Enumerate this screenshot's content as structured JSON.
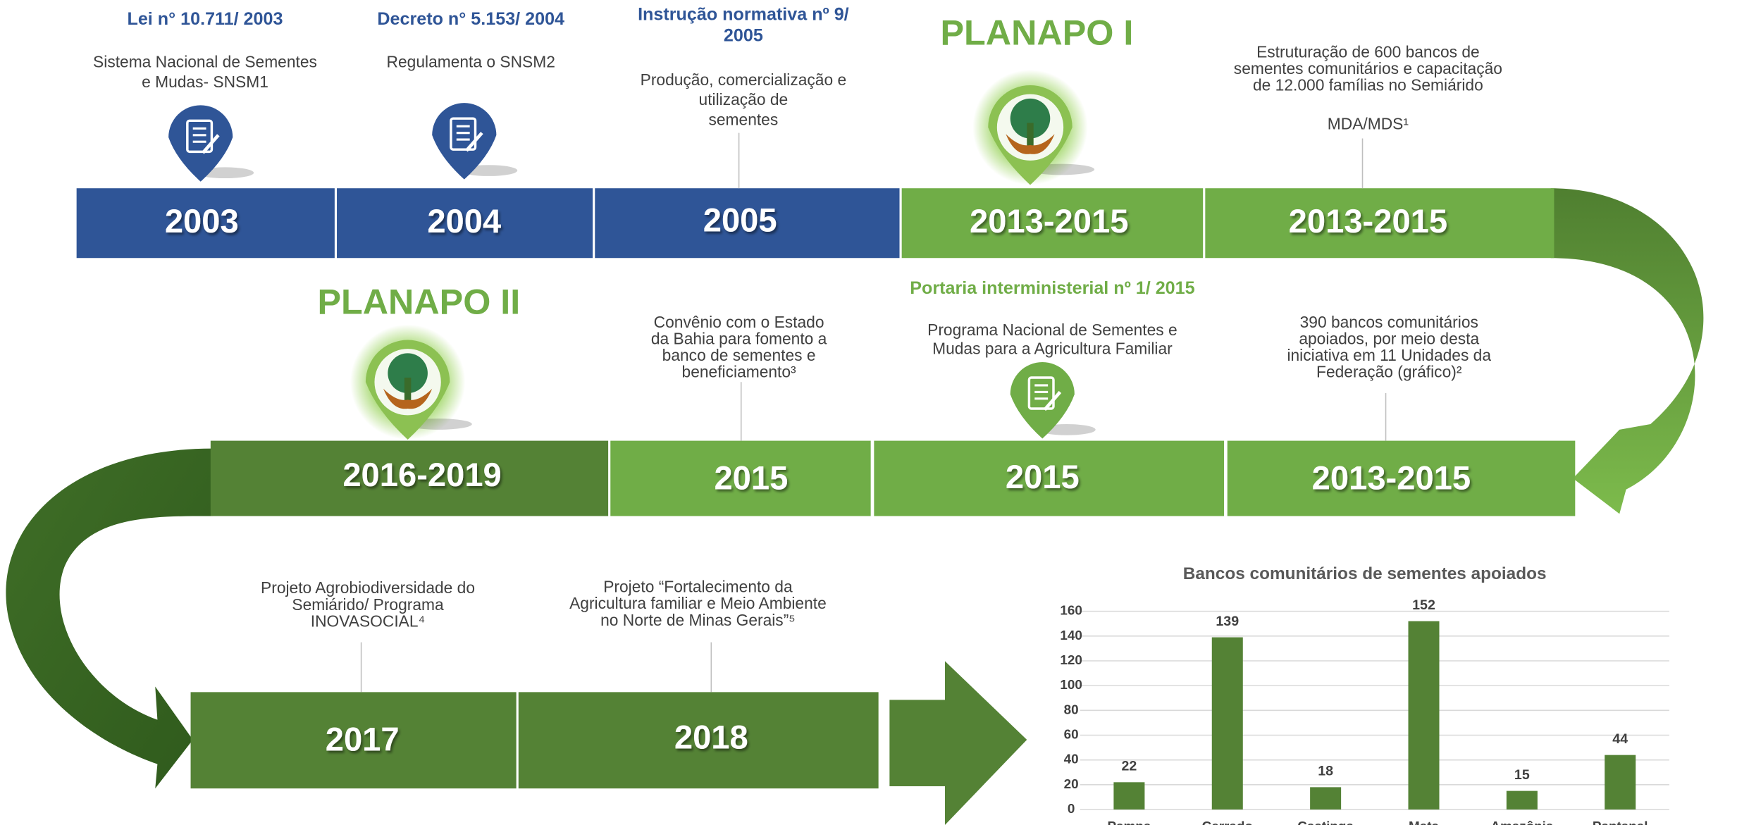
{
  "events": [
    {
      "year": "2003",
      "title": [
        "Lei n° 10.711/ 2003"
      ],
      "description": [
        "Sistema Nacional de Sementes",
        "e Mudas- SNSM1"
      ]
    },
    {
      "year": "2004",
      "title": [
        "Decreto n° 5.153/ 2004"
      ],
      "description": [
        "Regulamenta o SNSM2"
      ]
    },
    {
      "year": "2005",
      "title": [
        "Instrução normativa nº 9/",
        "2005"
      ],
      "description": [
        "Produção, comercialização e",
        "utilização de",
        "sementes"
      ]
    },
    {
      "year": "2013-2015",
      "title": [
        "PLANAPO I"
      ]
    },
    {
      "year": "2013-2015",
      "description": [
        "Estruturação de 600 bancos de",
        "sementes comunitários e capacitação",
        "de 12.000 famílias no Semiárido",
        "MDA/MDS¹"
      ]
    },
    {
      "year": "2016-2019",
      "title": [
        "PLANAPO II"
      ]
    },
    {
      "year": "2015",
      "description": [
        "Convênio com o Estado",
        "da Bahia para fomento a",
        "banco de sementes e",
        "beneficiamento³"
      ]
    },
    {
      "year": "2015",
      "title": [
        "Portaria interministerial nº 1/ 2015"
      ],
      "description": [
        "Programa Nacional de Sementes e",
        "Mudas para a Agricultura Familiar"
      ]
    },
    {
      "year": "2013-2015",
      "description": [
        "390 bancos comunitários",
        "apoiados, por meio desta",
        "iniciativa em 11 Unidades da",
        "Federação (gráfico)²"
      ]
    },
    {
      "year": "2017",
      "description": [
        "Projeto Agrobiodiversidade do",
        "Semiárido/ Programa",
        "INOVASOCIAL⁴"
      ]
    },
    {
      "year": "2018",
      "description": [
        "Projeto “Fortalecimento da",
        "Agricultura familiar e Meio Ambiente",
        "no Norte de Minas Gerais”⁵"
      ]
    }
  ],
  "chart_data": {
    "type": "bar",
    "title": "Bancos comunitários de sementes apoiados",
    "categories": [
      "Pampa",
      "Cerrado",
      "Caatinga",
      "Mata",
      "Amazônia",
      "Pantanal"
    ],
    "values": [
      22,
      139,
      18,
      152,
      15,
      44
    ],
    "color": "#548235",
    "ylim": [
      0,
      160
    ],
    "yticks": [
      0,
      20,
      40,
      60,
      80,
      100,
      120,
      140,
      160
    ],
    "grid": true
  }
}
